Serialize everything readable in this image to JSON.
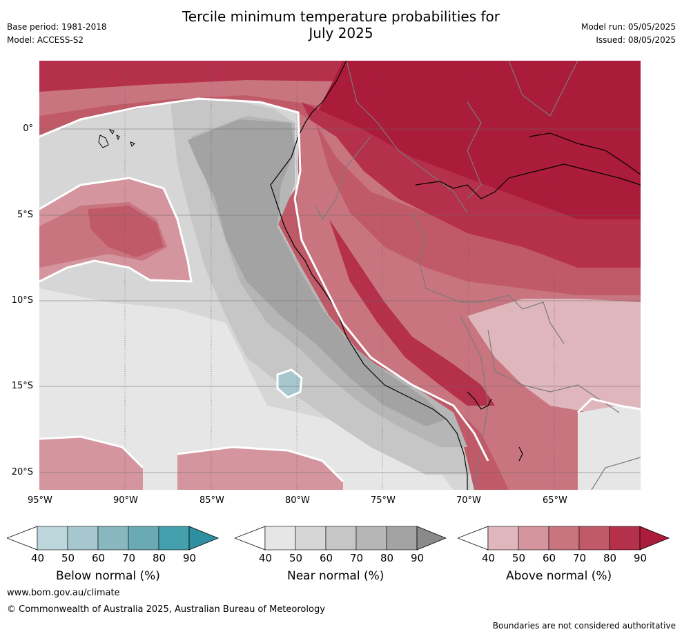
{
  "header": {
    "title_line1": "Tercile minimum temperature probabilities for",
    "title_line2": "July 2025",
    "base_period": "Base period: 1981-2018",
    "model": "Model: ACCESS-S2",
    "model_run": "Model run: 05/05/2025",
    "issued": "Issued: 08/05/2025"
  },
  "map": {
    "x_ticks": [
      "95°W",
      "90°W",
      "85°W",
      "80°W",
      "75°W",
      "70°W",
      "65°W"
    ],
    "y_ticks": [
      "0°",
      "5°S",
      "10°S",
      "15°S",
      "20°S"
    ],
    "colors": {
      "above": [
        "#e0b6bd",
        "#d4959e",
        "#c97580",
        "#c15a68",
        "#b5304a",
        "#ab1c3a"
      ],
      "near": [
        "#e6e6e6",
        "#d6d6d6",
        "#c6c6c6",
        "#b6b6b6",
        "#a3a3a3",
        "#8a8a8a"
      ],
      "below": [
        "#bcd6db",
        "#a6c7cd",
        "#88b7c0",
        "#6aaab4",
        "#45a0ae",
        "#2e8fa0"
      ],
      "coast": "#000000",
      "border": "#7a7a7a"
    }
  },
  "colorbars": [
    {
      "name": "below",
      "title": "Below normal (%)",
      "labels": [
        "40",
        "50",
        "60",
        "70",
        "80",
        "90"
      ],
      "colors": [
        "#bcd6db",
        "#a6c7cd",
        "#88b7c0",
        "#6aaab4",
        "#45a0ae",
        "#2e8fa0"
      ]
    },
    {
      "name": "near",
      "title": "Near normal (%)",
      "labels": [
        "40",
        "50",
        "60",
        "70",
        "80",
        "90"
      ],
      "colors": [
        "#e6e6e6",
        "#d6d6d6",
        "#c6c6c6",
        "#b6b6b6",
        "#a3a3a3",
        "#8a8a8a"
      ]
    },
    {
      "name": "above",
      "title": "Above normal (%)",
      "labels": [
        "40",
        "50",
        "60",
        "70",
        "80",
        "90"
      ],
      "colors": [
        "#e0b6bd",
        "#d4959e",
        "#c97580",
        "#c15a68",
        "#b5304a",
        "#ab1c3a"
      ]
    }
  ],
  "footer": {
    "website": "www.bom.gov.au/climate",
    "copyright": "© Commonwealth of Australia 2025, Australian Bureau of Meteorology",
    "disclaimer": "Boundaries are not considered authoritative"
  }
}
